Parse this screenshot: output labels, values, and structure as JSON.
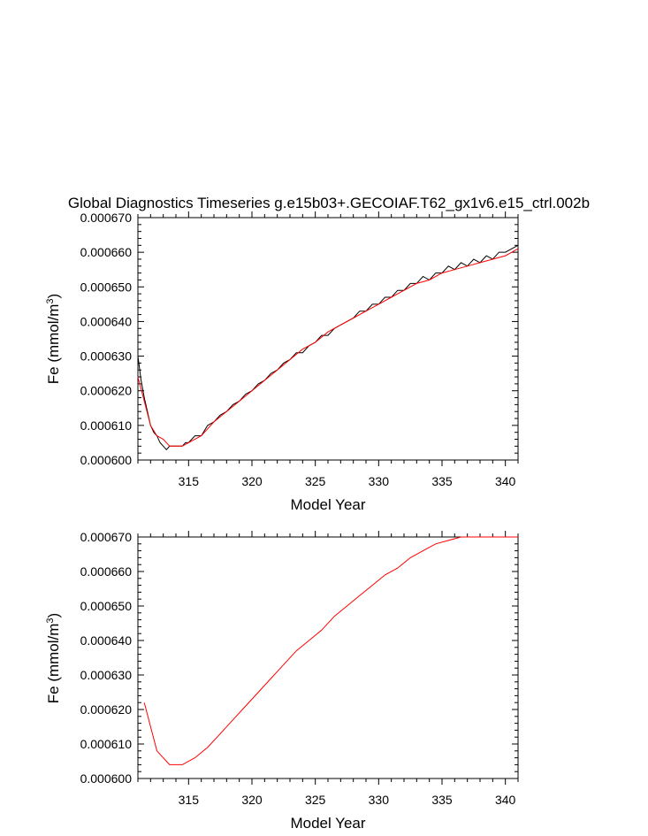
{
  "figure": {
    "title": "Global Diagnostics Timeseries g.e15b03+.GECOIAF.T62_gx1v6.e15_ctrl.002b"
  },
  "colors": {
    "monthly_series": "#000000",
    "annual_series": "#ff0000",
    "frame": "#000000",
    "background": "#ffffff"
  },
  "chart_data": [
    {
      "type": "line",
      "title": "Global Diagnostics Timeseries g.e15b03+.GECOIAF.T62_gx1v6.e15_ctrl.002b",
      "xlabel": "Model Year",
      "ylabel_main": "Fe (mmol/m",
      "ylabel_sup": "3",
      "ylabel_close": ")",
      "xlim": [
        311.0,
        341.0
      ],
      "ylim": [
        0.0006,
        0.00067
      ],
      "xticks": [
        315,
        320,
        325,
        330,
        335,
        340
      ],
      "xtick_labels": [
        "315",
        "320",
        "325",
        "330",
        "335",
        "340"
      ],
      "yticks": [
        0.0006,
        0.00061,
        0.00062,
        0.00063,
        0.00064,
        0.00065,
        0.00066,
        0.00067
      ],
      "ytick_labels": [
        "0.000600",
        "0.000610",
        "0.000620",
        "0.000630",
        "0.000640",
        "0.000650",
        "0.000660",
        "0.000670"
      ],
      "grid": false,
      "legend": "none",
      "series": [
        {
          "color": "#000000",
          "x": [
            311.0,
            311.25,
            311.5,
            311.75,
            312.0,
            312.25,
            312.5,
            312.75,
            313.0,
            313.25,
            313.5,
            313.75,
            314.0,
            314.25,
            314.5,
            314.75,
            315.0,
            315.5,
            316.0,
            316.5,
            317.0,
            317.5,
            318.0,
            318.5,
            319.0,
            319.5,
            320.0,
            320.5,
            321.0,
            321.5,
            322.0,
            322.5,
            323.0,
            323.5,
            324.0,
            324.5,
            325.0,
            325.5,
            326.0,
            326.5,
            327.0,
            327.5,
            328.0,
            328.5,
            329.0,
            329.5,
            330.0,
            330.5,
            331.0,
            331.5,
            332.0,
            332.5,
            333.0,
            333.5,
            334.0,
            334.5,
            335.0,
            335.5,
            336.0,
            336.5,
            337.0,
            337.5,
            338.0,
            338.5,
            339.0,
            339.5,
            340.0,
            340.5,
            341.0
          ],
          "y": [
            0.00063,
            0.000623,
            0.000618,
            0.000614,
            0.00061,
            0.000608,
            0.000607,
            0.000605,
            0.000604,
            0.000603,
            0.000604,
            0.000604,
            0.000604,
            0.000604,
            0.000604,
            0.000605,
            0.000605,
            0.000607,
            0.000607,
            0.00061,
            0.000611,
            0.000613,
            0.000614,
            0.000616,
            0.000617,
            0.000619,
            0.00062,
            0.000622,
            0.000623,
            0.000625,
            0.000626,
            0.000628,
            0.000629,
            0.000631,
            0.000631,
            0.000633,
            0.000634,
            0.000636,
            0.000636,
            0.000638,
            0.000639,
            0.00064,
            0.000641,
            0.000643,
            0.000643,
            0.000645,
            0.000645,
            0.000647,
            0.000647,
            0.000649,
            0.000649,
            0.000651,
            0.000651,
            0.000653,
            0.000652,
            0.000654,
            0.000654,
            0.000656,
            0.000655,
            0.000657,
            0.000656,
            0.000658,
            0.000657,
            0.000659,
            0.000658,
            0.00066,
            0.00066,
            0.000661,
            0.000662
          ]
        },
        {
          "color": "#ff0000",
          "x": [
            311.0,
            311.5,
            312.0,
            312.5,
            313.0,
            313.5,
            314.0,
            314.5,
            315.0,
            316.0,
            317.0,
            318.0,
            319.0,
            320.0,
            321.0,
            322.0,
            323.0,
            324.0,
            325.0,
            326.0,
            327.0,
            328.0,
            329.0,
            330.0,
            331.0,
            332.0,
            333.0,
            334.0,
            335.0,
            336.0,
            337.0,
            338.0,
            339.0,
            340.0,
            341.0
          ],
          "y": [
            0.000624,
            0.000617,
            0.00061,
            0.000607,
            0.000606,
            0.000604,
            0.000604,
            0.000604,
            0.000605,
            0.000607,
            0.000611,
            0.000614,
            0.000617,
            0.00062,
            0.000623,
            0.000626,
            0.000629,
            0.000632,
            0.000634,
            0.000637,
            0.000639,
            0.000641,
            0.000643,
            0.000645,
            0.000647,
            0.000649,
            0.000651,
            0.000652,
            0.000654,
            0.000655,
            0.000656,
            0.000657,
            0.000658,
            0.000659,
            0.000661
          ]
        }
      ]
    },
    {
      "type": "line",
      "title": "",
      "xlabel": "Model Year",
      "ylabel_main": "Fe (mmol/m",
      "ylabel_sup": "3",
      "ylabel_close": ")",
      "xlim": [
        311.0,
        341.0
      ],
      "ylim": [
        0.0006,
        0.00067
      ],
      "xticks": [
        315,
        320,
        325,
        330,
        335,
        340
      ],
      "xtick_labels": [
        "315",
        "320",
        "325",
        "330",
        "335",
        "340"
      ],
      "yticks": [
        0.0006,
        0.00061,
        0.00062,
        0.00063,
        0.00064,
        0.00065,
        0.00066,
        0.00067
      ],
      "ytick_labels": [
        "0.000600",
        "0.000610",
        "0.000620",
        "0.000630",
        "0.000640",
        "0.000650",
        "0.000660",
        "0.000670"
      ],
      "grid": false,
      "legend": "none",
      "series": [
        {
          "color": "#ff0000",
          "x": [
            311.5,
            312.5,
            313.5,
            314.5,
            315.5,
            316.5,
            317.5,
            318.5,
            319.5,
            320.5,
            321.5,
            322.5,
            323.5,
            324.5,
            325.5,
            326.5,
            327.5,
            328.5,
            329.5,
            330.5,
            331.5,
            332.5,
            333.5,
            334.5,
            335.5,
            336.5,
            337.5,
            338.5,
            339.5,
            340.5,
            341.0
          ],
          "y": [
            0.000622,
            0.000608,
            0.000604,
            0.000604,
            0.000606,
            0.000609,
            0.000613,
            0.000617,
            0.000621,
            0.000625,
            0.000629,
            0.000633,
            0.000637,
            0.00064,
            0.000643,
            0.000647,
            0.00065,
            0.000653,
            0.000656,
            0.000659,
            0.000661,
            0.000664,
            0.000666,
            0.000668,
            0.000669,
            0.00067,
            0.00067,
            0.00067,
            0.00067,
            0.00067,
            0.00067
          ]
        }
      ]
    }
  ]
}
